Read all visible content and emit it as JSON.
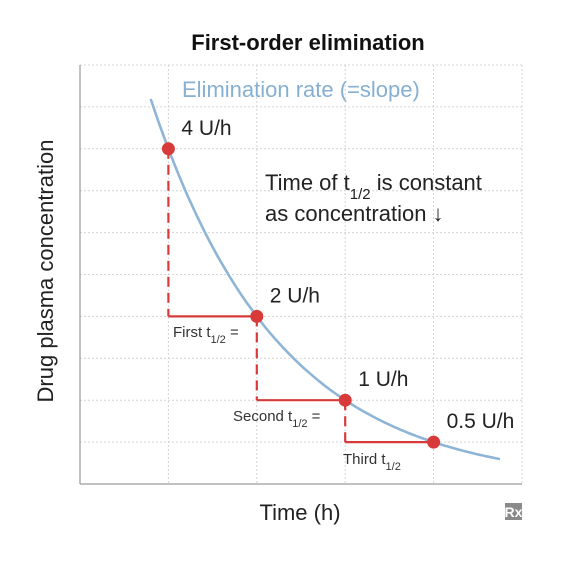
{
  "chart_data": {
    "type": "line",
    "title": "First-order elimination",
    "xlabel": "Time (h)",
    "ylabel": "Drug plasma concentration",
    "curve_label": "Elimination rate (=slope)",
    "note_line1_prefix": "Time of t",
    "note_line1_sub": "1/2",
    "note_line1_suffix": " is constant",
    "note_line2": "as concentration ↓",
    "points": [
      {
        "x": 1,
        "y": 8,
        "label": "4 U/h"
      },
      {
        "x": 2,
        "y": 4,
        "label": "2 U/h"
      },
      {
        "x": 3,
        "y": 2,
        "label": "1 U/h"
      },
      {
        "x": 4,
        "y": 1,
        "label": "0.5 U/h"
      }
    ],
    "half_life_steps": [
      {
        "prefix": "First t",
        "sub": "1/2",
        "suffix": " ="
      },
      {
        "prefix": "Second t",
        "sub": "1/2",
        "suffix": " ="
      },
      {
        "prefix": "Third t",
        "sub": "1/2",
        "suffix": ""
      }
    ],
    "curve_x_range": [
      0.8,
      4.75
    ],
    "xlim": [
      0,
      5
    ],
    "ylim": [
      0,
      10
    ],
    "grid": true,
    "colors": {
      "curve": "#8fb5d6",
      "points": "#d83a3a",
      "steps": "#d83a3a",
      "grid": "#d4d4d4"
    }
  },
  "badge": {
    "text": "Rx",
    "icon": "rx-icon"
  }
}
